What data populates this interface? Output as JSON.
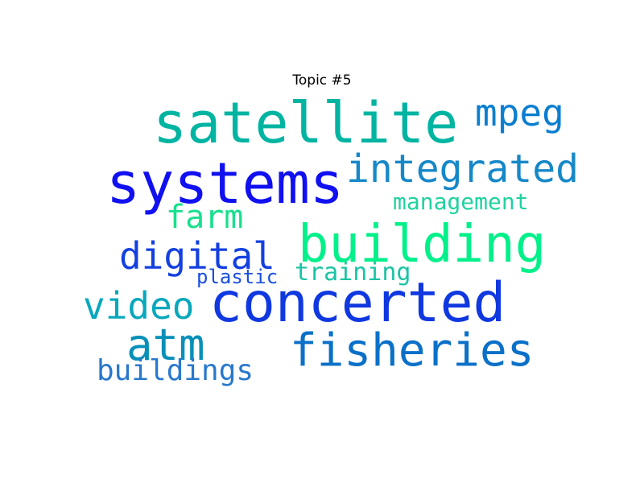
{
  "title": "Topic #5",
  "words": [
    {
      "text": "satellite",
      "color": "#00b4a2"
    },
    {
      "text": "mpeg",
      "color": "#0a7ed0"
    },
    {
      "text": "systems",
      "color": "#1010f0"
    },
    {
      "text": "integrated",
      "color": "#1688c8"
    },
    {
      "text": "management",
      "color": "#20d2a0"
    },
    {
      "text": "farm",
      "color": "#18e08e"
    },
    {
      "text": "building",
      "color": "#00f08a"
    },
    {
      "text": "digital",
      "color": "#1440e0"
    },
    {
      "text": "plastic",
      "color": "#1a4ee0"
    },
    {
      "text": "training",
      "color": "#1ac4a4"
    },
    {
      "text": "video",
      "color": "#08a8bc"
    },
    {
      "text": "concerted",
      "color": "#1038e0"
    },
    {
      "text": "atm",
      "color": "#0890b8"
    },
    {
      "text": "fisheries",
      "color": "#0a70c8"
    },
    {
      "text": "buildings",
      "color": "#2878cc"
    }
  ]
}
